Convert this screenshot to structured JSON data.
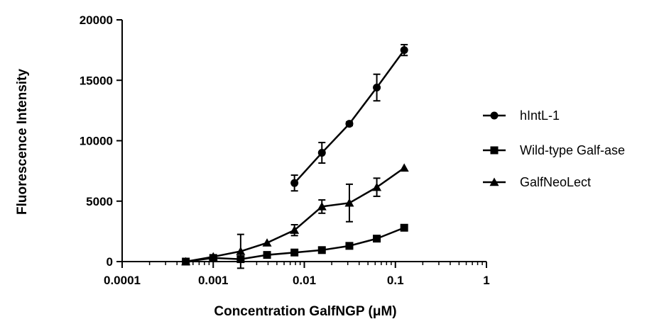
{
  "chart_data": {
    "type": "line",
    "xlabel": "Concentration GalfNGP (μM)",
    "ylabel": "Fluorescence Intensity",
    "xscale": "log",
    "xlim": [
      0.0001,
      1
    ],
    "ylim": [
      0,
      20000
    ],
    "xticks": [
      {
        "value": 0.0001,
        "label": "0.0001"
      },
      {
        "value": 0.001,
        "label": "0.001"
      },
      {
        "value": 0.01,
        "label": "0.01"
      },
      {
        "value": 0.1,
        "label": "0.1"
      },
      {
        "value": 1,
        "label": "1"
      }
    ],
    "yticks": [
      {
        "value": 0,
        "label": "0"
      },
      {
        "value": 5000,
        "label": "5000"
      },
      {
        "value": 10000,
        "label": "10000"
      },
      {
        "value": 15000,
        "label": "15000"
      },
      {
        "value": 20000,
        "label": "20000"
      }
    ],
    "grid": false,
    "legend_position": "right",
    "series": [
      {
        "name": "hIntL-1",
        "marker": "circle",
        "x": [
          0.0078,
          0.0156,
          0.03125,
          0.0625,
          0.125
        ],
        "y": [
          6500,
          9000,
          11400,
          14400,
          17500
        ],
        "err": [
          650,
          850,
          150,
          1100,
          450
        ]
      },
      {
        "name": "Wild-type Galf-ase",
        "marker": "square",
        "x": [
          0.0005,
          0.001,
          0.002,
          0.0039,
          0.0078,
          0.0156,
          0.03125,
          0.0625,
          0.125
        ],
        "y": [
          0,
          300,
          200,
          550,
          750,
          950,
          1300,
          1900,
          2800
        ],
        "err": [
          0,
          0,
          0,
          0,
          0,
          0,
          0,
          0,
          0
        ]
      },
      {
        "name": "GalfNeoLect",
        "marker": "triangle",
        "x": [
          0.0005,
          0.001,
          0.002,
          0.0039,
          0.0078,
          0.0156,
          0.03125,
          0.0625,
          0.125
        ],
        "y": [
          0,
          400,
          850,
          1550,
          2600,
          4550,
          4850,
          6150,
          7750
        ],
        "err": [
          0,
          0,
          1400,
          0,
          450,
          550,
          1550,
          750,
          0
        ]
      }
    ]
  }
}
